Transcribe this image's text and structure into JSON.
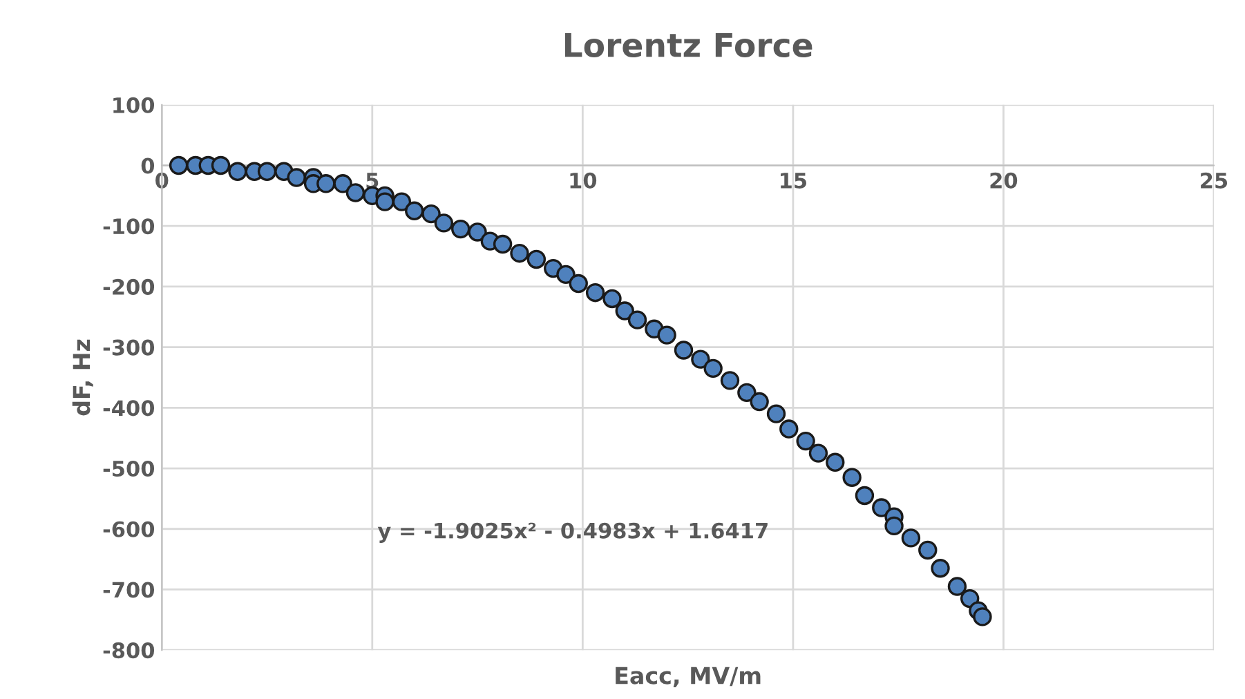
{
  "chart_data": {
    "type": "scatter",
    "title": "Lorentz Force",
    "xlabel": "Eacc, MV/m",
    "ylabel": "dF, Hz",
    "series": [
      {
        "color": "#4f81bd",
        "x": [
          0.4,
          0.8,
          1.1,
          1.4,
          1.8,
          2.2,
          2.5,
          2.9,
          3.2,
          3.6,
          3.6,
          3.9,
          4.3,
          4.6,
          5.0,
          5.3,
          5.3,
          5.7,
          6.0,
          6.4,
          6.7,
          7.1,
          7.5,
          7.8,
          8.1,
          8.5,
          8.9,
          9.3,
          9.6,
          9.9,
          10.3,
          10.7,
          11.0,
          11.3,
          11.7,
          12.0,
          12.4,
          12.8,
          13.1,
          13.5,
          13.9,
          14.2,
          14.6,
          14.9,
          15.3,
          15.6,
          16.0,
          16.4,
          16.7,
          17.1,
          17.4,
          17.4,
          17.8,
          18.2,
          18.5,
          18.9,
          19.2,
          19.4,
          19.5
        ],
        "values": [
          0,
          0,
          0,
          0,
          -10,
          -10,
          -10,
          -10,
          -20,
          -20,
          -30,
          -30,
          -30,
          -45,
          -50,
          -50,
          -60,
          -60,
          -75,
          -80,
          -95,
          -105,
          -110,
          -125,
          -130,
          -145,
          -155,
          -170,
          -180,
          -195,
          -210,
          -220,
          -240,
          -255,
          -270,
          -280,
          -305,
          -320,
          -335,
          -355,
          -375,
          -390,
          -410,
          -435,
          -455,
          -475,
          -490,
          -515,
          -545,
          -565,
          -580,
          -595,
          -615,
          -635,
          -665,
          -695,
          -715,
          -735,
          -745
        ]
      }
    ],
    "xlim": [
      0,
      25
    ],
    "xticks": [
      0,
      5,
      10,
      15,
      20,
      25
    ],
    "ylim": [
      -800,
      100
    ],
    "yticks": [
      -800,
      -700,
      -600,
      -500,
      -400,
      -300,
      -200,
      -100,
      0,
      100
    ],
    "grid": true,
    "marker": "circle",
    "annotations": [
      "y = -1.9025x² - 0.4983x + 1.6417"
    ]
  }
}
